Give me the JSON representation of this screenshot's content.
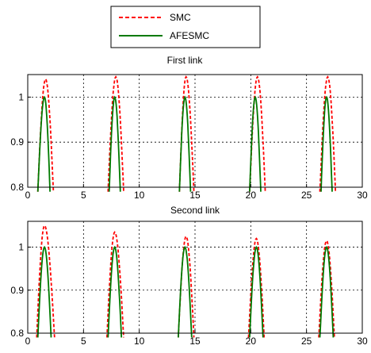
{
  "chart_data": [
    {
      "type": "line",
      "title": "First link",
      "xlim": [
        0,
        30
      ],
      "ylim": [
        0.8,
        1.05
      ],
      "xticks": [
        0,
        5,
        10,
        15,
        20,
        25,
        30
      ],
      "yticks": [
        0.8,
        0.9,
        1
      ],
      "xtick_labels": [
        "0",
        "5",
        "10",
        "15",
        "20",
        "25",
        "30"
      ],
      "ytick_labels": [
        "0.8",
        "0.9",
        "1"
      ],
      "grid": true,
      "series": [
        {
          "name": "SMC",
          "color": "#ff0000",
          "style": "dashed",
          "pulses": [
            {
              "start": 0.9,
              "peak_x": 1.6,
              "peak_y": 1.04,
              "end": 2.3
            },
            {
              "start": 7.2,
              "peak_x": 7.9,
              "peak_y": 1.045,
              "end": 8.6
            },
            {
              "start": 13.6,
              "peak_x": 14.2,
              "peak_y": 1.045,
              "end": 14.9
            },
            {
              "start": 19.9,
              "peak_x": 20.6,
              "peak_y": 1.045,
              "end": 21.3
            },
            {
              "start": 26.2,
              "peak_x": 26.9,
              "peak_y": 1.045,
              "end": 27.6
            }
          ]
        },
        {
          "name": "AFESMC",
          "color": "#007a00",
          "style": "solid",
          "pulses": [
            {
              "start": 0.9,
              "peak_x": 1.5,
              "peak_y": 1.0,
              "end": 2.0
            },
            {
              "start": 7.3,
              "peak_x": 7.8,
              "peak_y": 1.0,
              "end": 8.3
            },
            {
              "start": 13.6,
              "peak_x": 14.1,
              "peak_y": 1.0,
              "end": 14.6
            },
            {
              "start": 19.9,
              "peak_x": 20.4,
              "peak_y": 1.0,
              "end": 20.9
            },
            {
              "start": 26.3,
              "peak_x": 26.8,
              "peak_y": 1.0,
              "end": 27.3
            }
          ]
        }
      ]
    },
    {
      "type": "line",
      "title": "Second link",
      "xlim": [
        0,
        30
      ],
      "ylim": [
        0.8,
        1.06
      ],
      "xticks": [
        0,
        5,
        10,
        15,
        20,
        25,
        30
      ],
      "yticks": [
        0.8,
        0.9,
        1
      ],
      "xtick_labels": [
        "0",
        "5",
        "10",
        "15",
        "20",
        "25",
        "30"
      ],
      "ytick_labels": [
        "0.8",
        "0.9",
        "1"
      ],
      "grid": true,
      "series": [
        {
          "name": "SMC",
          "color": "#ff0000",
          "style": "dashed",
          "pulses": [
            {
              "start": 0.8,
              "peak_x": 1.5,
              "peak_y": 1.05,
              "end": 2.4
            },
            {
              "start": 7.1,
              "peak_x": 7.8,
              "peak_y": 1.035,
              "end": 8.6
            },
            {
              "start": 13.5,
              "peak_x": 14.2,
              "peak_y": 1.025,
              "end": 14.9
            },
            {
              "start": 19.8,
              "peak_x": 20.5,
              "peak_y": 1.02,
              "end": 21.2
            },
            {
              "start": 26.1,
              "peak_x": 26.8,
              "peak_y": 1.015,
              "end": 27.5
            }
          ]
        },
        {
          "name": "AFESMC",
          "color": "#007a00",
          "style": "solid",
          "pulses": [
            {
              "start": 0.9,
              "peak_x": 1.5,
              "peak_y": 1.0,
              "end": 2.1
            },
            {
              "start": 7.2,
              "peak_x": 7.8,
              "peak_y": 1.0,
              "end": 8.4
            },
            {
              "start": 13.5,
              "peak_x": 14.1,
              "peak_y": 1.0,
              "end": 14.7
            },
            {
              "start": 19.9,
              "peak_x": 20.5,
              "peak_y": 1.0,
              "end": 21.1
            },
            {
              "start": 26.2,
              "peak_x": 26.8,
              "peak_y": 1.0,
              "end": 27.4
            }
          ]
        }
      ]
    }
  ],
  "legend": {
    "placement": "top-center",
    "entries": [
      {
        "label": "SMC",
        "color": "#ff0000",
        "style": "dashed"
      },
      {
        "label": "AFESMC",
        "color": "#007a00",
        "style": "solid"
      }
    ]
  }
}
